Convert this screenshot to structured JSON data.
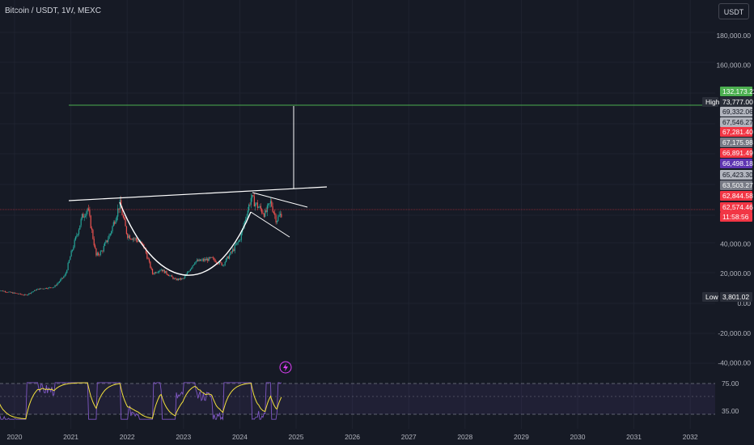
{
  "header": {
    "title": "Bitcoin / USDT, 1W, MEXC",
    "currency_button": "USDT"
  },
  "chart_data": {
    "type": "candlestick",
    "symbol": "Bitcoin / USDT",
    "interval": "1W",
    "exchange": "MEXC",
    "ylim": [
      -50000,
      200000
    ],
    "y_ticks": [
      "180,000.00",
      "160,000.00",
      "40,000.00",
      "20,000.00",
      "0.00",
      "-20,000.00",
      "-40,000.00"
    ],
    "y_tick_values": [
      180000,
      160000,
      40000,
      20000,
      0,
      -20000,
      -40000
    ],
    "x_ticks": [
      "2020",
      "2021",
      "2022",
      "2023",
      "2024",
      "2025",
      "2026",
      "2027",
      "2028",
      "2029",
      "2030",
      "2031",
      "2032"
    ],
    "x_tick_values": [
      2020,
      2021,
      2022,
      2023,
      2024,
      2025,
      2026,
      2027,
      2028,
      2029,
      2030,
      2031,
      2032
    ],
    "price_path": [
      [
        2019.7,
        9000
      ],
      [
        2019.9,
        7500
      ],
      [
        2020.2,
        5500
      ],
      [
        2020.4,
        9500
      ],
      [
        2020.7,
        11000
      ],
      [
        2020.9,
        19000
      ],
      [
        2021.0,
        33000
      ],
      [
        2021.2,
        58000
      ],
      [
        2021.3,
        64000
      ],
      [
        2021.45,
        32000
      ],
      [
        2021.55,
        35000
      ],
      [
        2021.7,
        47000
      ],
      [
        2021.87,
        67000
      ],
      [
        2022.0,
        46000
      ],
      [
        2022.2,
        42000
      ],
      [
        2022.3,
        38000
      ],
      [
        2022.45,
        20000
      ],
      [
        2022.6,
        23000
      ],
      [
        2022.85,
        16000
      ],
      [
        2023.0,
        16500
      ],
      [
        2023.2,
        28000
      ],
      [
        2023.5,
        30000
      ],
      [
        2023.7,
        26000
      ],
      [
        2023.9,
        37000
      ],
      [
        2024.0,
        43000
      ],
      [
        2024.2,
        71000
      ],
      [
        2024.3,
        66000
      ],
      [
        2024.45,
        60000
      ],
      [
        2024.55,
        68000
      ],
      [
        2024.65,
        56000
      ],
      [
        2024.75,
        61000
      ]
    ],
    "price_tags": [
      {
        "label": "",
        "value": "132,173.22",
        "color": "#4caf50"
      },
      {
        "label": "High",
        "value": "73,777.00",
        "color": "#2a2e39"
      },
      {
        "label": "",
        "value": "69,332.06",
        "color": "#b2b5be"
      },
      {
        "label": "",
        "value": "67,546.27",
        "color": "#b2b5be"
      },
      {
        "label": "",
        "value": "67,281.40",
        "color": "#f23645"
      },
      {
        "label": "",
        "value": "67,175.98",
        "color": "#787b86"
      },
      {
        "label": "",
        "value": "66,891.49",
        "color": "#f23645"
      },
      {
        "label": "",
        "value": "66,498.18",
        "color": "#5e35b1"
      },
      {
        "label": "",
        "value": "65,423.30",
        "color": "#b2b5be"
      },
      {
        "label": "",
        "value": "63,503.27",
        "color": "#787b86"
      },
      {
        "label": "",
        "value": "62,844.58",
        "color": "#f23645"
      },
      {
        "label": "",
        "value": "62,574.46",
        "color": "#f23645"
      },
      {
        "label": "",
        "value": "11:58:56",
        "color": "#f23645"
      },
      {
        "label": "Low",
        "value": "3,801.02",
        "color": "#2a2e39"
      }
    ],
    "indicator": {
      "name": "RSI",
      "levels": [
        "75.00",
        "35.00"
      ],
      "level_values": [
        75,
        35
      ],
      "band_color": "#7e57c2"
    },
    "drawings": [
      "cup-and-handle-curve",
      "neckline",
      "handle-channel",
      "target-projection"
    ],
    "colors": {
      "up": "#26a69a",
      "down": "#ef5350",
      "target": "#4caf50",
      "current_price": "#f23645"
    }
  }
}
